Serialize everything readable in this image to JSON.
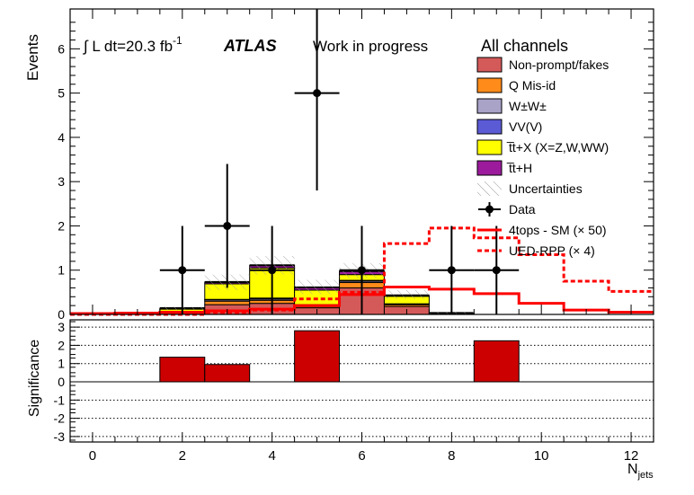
{
  "header": {
    "luminosity": "∫ L dt=20.3 fb",
    "luminosity_sup": "-1",
    "experiment": "ATLAS",
    "status": "Work in progress",
    "channel": "All channels"
  },
  "chart_data": [
    {
      "type": "bar",
      "stacked": true,
      "name": "main",
      "ylabel": "Events",
      "xlim": [
        -0.5,
        12.5
      ],
      "ylim": [
        0,
        6.9
      ],
      "x_ticks": [
        0,
        2,
        4,
        6,
        8,
        10,
        12
      ],
      "x_tick_labels": [
        "0",
        "2",
        "4",
        "6",
        "8",
        "10",
        "12"
      ],
      "y_ticks": [
        0,
        1,
        2,
        3,
        4,
        5,
        6
      ],
      "y_tick_labels": [
        "0",
        "1",
        "2",
        "3",
        "4",
        "5",
        "6"
      ],
      "bins": [
        0,
        1,
        2,
        3,
        4,
        5,
        6,
        7,
        8,
        9,
        10,
        11,
        12
      ],
      "series": [
        {
          "name": "Non-prompt/fakes",
          "color": "#d45a5a",
          "values": [
            0,
            0,
            0.03,
            0.22,
            0.25,
            0.15,
            0.6,
            0.18,
            0,
            0,
            0,
            0,
            0
          ]
        },
        {
          "name": "Q Mis-id",
          "color": "#ff8c1a",
          "values": [
            0,
            0,
            0.02,
            0.08,
            0.07,
            0.03,
            0.12,
            0.04,
            0,
            0,
            0,
            0,
            0
          ]
        },
        {
          "name": "W±W±",
          "color": "#a9a3c8",
          "values": [
            0,
            0,
            0.01,
            0.03,
            0.03,
            0.02,
            0.03,
            0.01,
            0,
            0,
            0,
            0,
            0
          ]
        },
        {
          "name": "VV(V)",
          "color": "#5b5bd6",
          "values": [
            0,
            0,
            0.01,
            0.01,
            0.02,
            0.02,
            0.02,
            0.01,
            0,
            0,
            0,
            0,
            0
          ]
        },
        {
          "name": "t̅t+X (X=Z,W,WW)",
          "color": "#ffff00",
          "values": [
            0,
            0,
            0.05,
            0.35,
            0.68,
            0.33,
            0.13,
            0.17,
            0.02,
            0,
            0,
            0,
            0
          ]
        },
        {
          "name": "t̅t+H",
          "color": "#9c1b9c",
          "values": [
            0,
            0,
            0.02,
            0.04,
            0.06,
            0.06,
            0.08,
            0.02,
            0.01,
            0,
            0,
            0,
            0
          ]
        }
      ],
      "uncertainties": {
        "name": "Uncertainties",
        "up": [
          0,
          0,
          0.18,
          0.9,
          1.32,
          0.78,
          1.16,
          0.55,
          0.05,
          0,
          0,
          0,
          0
        ],
        "down": [
          0,
          0,
          0.1,
          0.55,
          0.9,
          0.46,
          0.82,
          0.35,
          0,
          0,
          0,
          0,
          0
        ]
      },
      "data": {
        "name": "Data",
        "x": [
          2,
          3,
          4,
          5,
          6,
          8,
          9
        ],
        "y": [
          1,
          2,
          1,
          5,
          1,
          1,
          1
        ],
        "err_up": [
          1,
          1.4,
          1,
          2.9,
          1,
          1,
          1
        ],
        "err_down": [
          1,
          1.4,
          1,
          2.2,
          1,
          1,
          1
        ]
      },
      "signals": [
        {
          "name": "4tops - SM (× 50)",
          "style": "solid",
          "color": "#ff0000",
          "values": [
            0.02,
            0.03,
            0.05,
            0.08,
            0.12,
            0.2,
            0.45,
            0.62,
            0.57,
            0.47,
            0.25,
            0.1,
            0.05
          ]
        },
        {
          "name": "UED-RPP (× 4)",
          "style": "dashed",
          "color": "#ff0000",
          "values": [
            0,
            0,
            0,
            0.02,
            0.1,
            0.35,
            0.5,
            1.6,
            1.95,
            1.73,
            1.35,
            0.75,
            0.52
          ]
        }
      ]
    },
    {
      "type": "bar",
      "name": "significance",
      "ylabel": "Significance",
      "xlabel": "N",
      "xlabel_sub": "jets",
      "xlim": [
        -0.5,
        12.5
      ],
      "ylim": [
        -3.3,
        3.4
      ],
      "y_ticks": [
        -3,
        -2,
        -1,
        0,
        1,
        2,
        3
      ],
      "y_tick_labels": [
        "-3",
        "-2",
        "-1",
        "0",
        "1",
        "2",
        "3"
      ],
      "grid": true,
      "color": "#cc0000",
      "bins": [
        2,
        3,
        5,
        9
      ],
      "values": [
        1.35,
        0.95,
        2.8,
        2.25
      ]
    }
  ]
}
